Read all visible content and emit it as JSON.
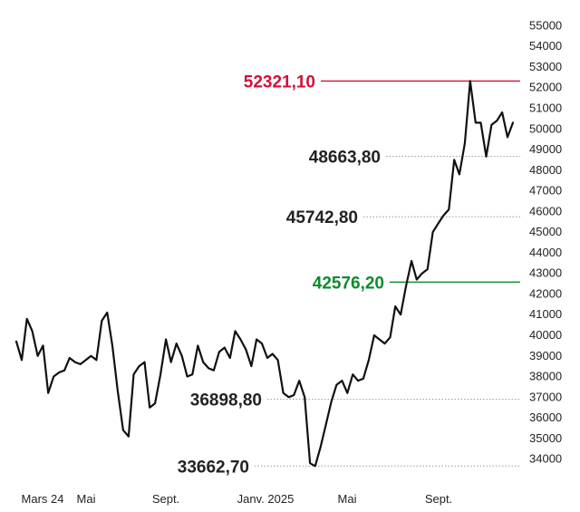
{
  "colors": {
    "line": "#111111",
    "high": "#d4103a",
    "low": "#0f8a2e",
    "neutral_ref": "#222222",
    "dotted": "#9a9a9a",
    "tick": "#222222"
  },
  "chart_data": {
    "type": "line",
    "title": "",
    "xlabel": "",
    "ylabel": "",
    "ylim": [
      33500,
      55500
    ],
    "y_ticks": [
      34000,
      35000,
      36000,
      37000,
      38000,
      39000,
      40000,
      41000,
      42000,
      43000,
      44000,
      45000,
      46000,
      47000,
      48000,
      49000,
      50000,
      51000,
      52000,
      53000,
      54000,
      55000
    ],
    "y_tick_labels": [
      "34000",
      "35000",
      "36000",
      "37000",
      "38000",
      "39000",
      "40000",
      "41000",
      "42000",
      "43000",
      "44000",
      "45000",
      "46000",
      "47000",
      "48000",
      "49000",
      "50000",
      "51000",
      "52000",
      "53000",
      "54000",
      "55000"
    ],
    "x_range": [
      0,
      19.4
    ],
    "x_ticks": [
      {
        "x": 1.0,
        "label": "Mars 24"
      },
      {
        "x": 3.0,
        "label": "Mai"
      },
      {
        "x": 7.0,
        "label": "Sept."
      },
      {
        "x": 11.0,
        "label": "Janv. 2025"
      },
      {
        "x": 15.0,
        "label": "Mai"
      },
      {
        "x": 19.0,
        "label": "Sept."
      }
    ],
    "x_unit": "months since Feb 2024",
    "reference_lines": [
      {
        "label": "52321,10",
        "value": 52321.1,
        "style": "solid",
        "color_key": "high"
      },
      {
        "label": "48663,80",
        "value": 48663.8,
        "style": "dotted",
        "color_key": "neutral_ref"
      },
      {
        "label": "45742,80",
        "value": 45742.8,
        "style": "dotted",
        "color_key": "neutral_ref"
      },
      {
        "label": "42576,20",
        "value": 42576.2,
        "style": "solid",
        "color_key": "low"
      },
      {
        "label": "36898,80",
        "value": 36898.8,
        "style": "dotted",
        "color_key": "neutral_ref"
      },
      {
        "label": "33662,70",
        "value": 33662.7,
        "style": "dotted",
        "color_key": "neutral_ref"
      }
    ],
    "series": [
      {
        "values": [
          [
            0.0,
            39700
          ],
          [
            0.22,
            38800
          ],
          [
            0.43,
            40800
          ],
          [
            0.65,
            40200
          ],
          [
            0.87,
            39000
          ],
          [
            1.09,
            39500
          ],
          [
            1.3,
            37200
          ],
          [
            1.52,
            38000
          ],
          [
            1.74,
            38200
          ],
          [
            1.96,
            38300
          ],
          [
            2.17,
            38900
          ],
          [
            2.39,
            38700
          ],
          [
            2.61,
            38600
          ],
          [
            2.83,
            38800
          ],
          [
            3.04,
            39000
          ],
          [
            3.26,
            38800
          ],
          [
            3.48,
            40700
          ],
          [
            3.7,
            41100
          ],
          [
            3.91,
            39500
          ],
          [
            4.13,
            37300
          ],
          [
            4.35,
            35400
          ],
          [
            4.57,
            35100
          ],
          [
            4.78,
            38100
          ],
          [
            5.0,
            38500
          ],
          [
            5.22,
            38700
          ],
          [
            5.43,
            36500
          ],
          [
            5.65,
            36700
          ],
          [
            5.87,
            38100
          ],
          [
            6.09,
            39800
          ],
          [
            6.3,
            38700
          ],
          [
            6.52,
            39600
          ],
          [
            6.74,
            39000
          ],
          [
            6.96,
            38000
          ],
          [
            7.17,
            38100
          ],
          [
            7.39,
            39500
          ],
          [
            7.61,
            38700
          ],
          [
            7.83,
            38400
          ],
          [
            8.04,
            38300
          ],
          [
            8.26,
            39200
          ],
          [
            8.48,
            39400
          ],
          [
            8.7,
            38900
          ],
          [
            8.91,
            40200
          ],
          [
            9.13,
            39800
          ],
          [
            9.35,
            39300
          ],
          [
            9.57,
            38500
          ],
          [
            9.78,
            39800
          ],
          [
            10.0,
            39600
          ],
          [
            10.22,
            38900
          ],
          [
            10.43,
            39100
          ],
          [
            10.65,
            38800
          ],
          [
            10.87,
            37200
          ],
          [
            11.09,
            37000
          ],
          [
            11.3,
            37100
          ],
          [
            11.52,
            37800
          ],
          [
            11.74,
            37000
          ],
          [
            11.96,
            33800
          ],
          [
            12.17,
            33662.7
          ],
          [
            12.39,
            34600
          ],
          [
            12.61,
            35700
          ],
          [
            12.83,
            36800
          ],
          [
            13.04,
            37600
          ],
          [
            13.26,
            37800
          ],
          [
            13.48,
            37200
          ],
          [
            13.7,
            38100
          ],
          [
            13.91,
            37800
          ],
          [
            14.13,
            37900
          ],
          [
            14.35,
            38800
          ],
          [
            14.57,
            40000
          ],
          [
            14.78,
            39800
          ],
          [
            15.0,
            39600
          ],
          [
            15.22,
            39900
          ],
          [
            15.43,
            41400
          ],
          [
            15.65,
            41000
          ],
          [
            15.87,
            42400
          ],
          [
            16.09,
            43600
          ],
          [
            16.3,
            42700
          ],
          [
            16.52,
            43000
          ],
          [
            16.74,
            43200
          ],
          [
            16.96,
            45000
          ],
          [
            17.17,
            45400
          ],
          [
            17.39,
            45800
          ],
          [
            17.61,
            46100
          ],
          [
            17.83,
            48500
          ],
          [
            18.04,
            47800
          ],
          [
            18.26,
            49300
          ],
          [
            18.48,
            52321.1
          ],
          [
            18.7,
            50300
          ],
          [
            18.91,
            50300
          ],
          [
            19.13,
            48663.8
          ],
          [
            19.35,
            50200
          ],
          [
            19.57,
            50400
          ],
          [
            19.78,
            50800
          ],
          [
            20.0,
            49600
          ],
          [
            20.22,
            50300
          ]
        ]
      }
    ]
  }
}
